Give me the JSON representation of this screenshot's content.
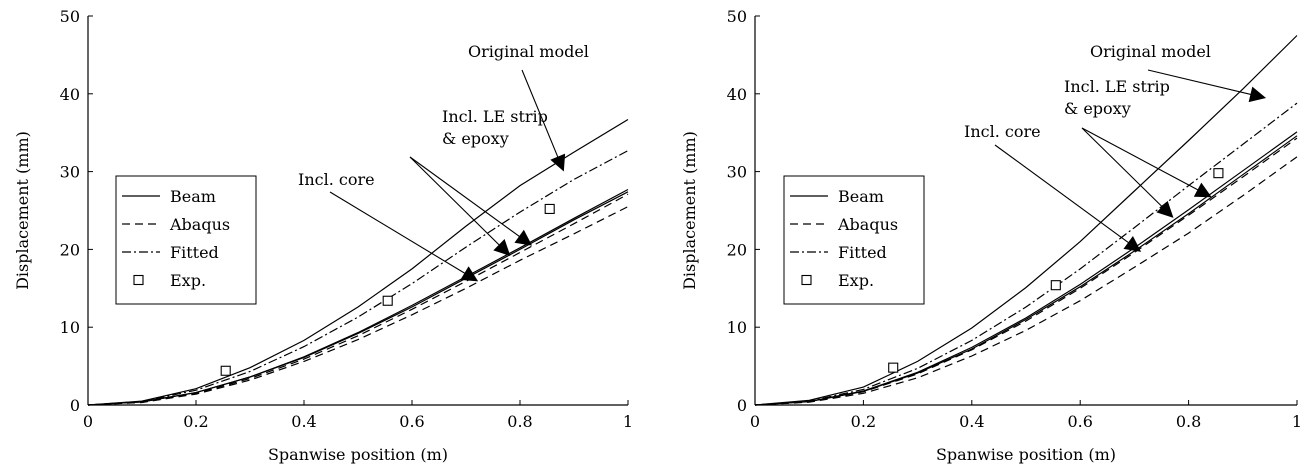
{
  "chart_data": [
    {
      "type": "line",
      "xlabel": "Spanwise position (m)",
      "ylabel": "Displacement (mm)",
      "xlim": [
        0,
        1
      ],
      "ylim": [
        0,
        50
      ],
      "xticks": [
        0,
        0.2,
        0.4,
        0.6,
        0.8,
        1
      ],
      "xtick_labels": [
        "0",
        "0.2",
        "0.4",
        "0.6",
        "0.8",
        "1"
      ],
      "yticks": [
        0,
        10,
        20,
        30,
        40,
        50
      ],
      "ytick_labels": [
        "0",
        "10",
        "20",
        "30",
        "40",
        "50"
      ],
      "grid": false,
      "legend_position": "middle-left",
      "legend": [
        {
          "label": "Beam",
          "style": "solid"
        },
        {
          "label": "Abaqus",
          "style": "dashed"
        },
        {
          "label": "Fitted",
          "style": "dashdot"
        },
        {
          "label": "Exp.",
          "style": "square-marker"
        }
      ],
      "x": [
        0,
        0.1,
        0.2,
        0.3,
        0.4,
        0.5,
        0.6,
        0.7,
        0.8,
        0.9,
        1.0
      ],
      "series": [
        {
          "group": "Original model",
          "kind": "Beam",
          "values": [
            0,
            0.5,
            2.1,
            4.8,
            8.3,
            12.6,
            17.5,
            23.0,
            28.2,
            32.5,
            36.7
          ]
        },
        {
          "group": "Incl. LE strip & epoxy",
          "kind": "Fitted",
          "values": [
            0,
            0.45,
            1.9,
            4.3,
            7.5,
            11.3,
            15.6,
            20.3,
            24.8,
            29.0,
            32.7
          ]
        },
        {
          "group": "Incl. LE strip & epoxy",
          "kind": "Beam",
          "values": [
            0,
            0.4,
            1.6,
            3.6,
            6.2,
            9.3,
            12.8,
            16.5,
            20.2,
            24.0,
            27.7
          ]
        },
        {
          "group": "Incl. LE strip & epoxy",
          "kind": "Abaqus",
          "values": [
            0,
            0.35,
            1.5,
            3.4,
            5.9,
            8.9,
            12.3,
            15.9,
            19.6,
            23.3,
            27.1
          ]
        },
        {
          "group": "Incl. core",
          "kind": "Beam",
          "values": [
            0,
            0.4,
            1.6,
            3.6,
            6.1,
            9.2,
            12.6,
            16.3,
            20.0,
            23.8,
            27.4
          ]
        },
        {
          "group": "Incl. core",
          "kind": "Abaqus",
          "values": [
            0,
            0.32,
            1.4,
            3.2,
            5.6,
            8.4,
            11.6,
            15.0,
            18.6,
            22.0,
            25.5
          ]
        }
      ],
      "experimental": [
        {
          "x": 0.255,
          "y": 4.4
        },
        {
          "x": 0.555,
          "y": 13.4
        },
        {
          "x": 0.855,
          "y": 25.2
        }
      ],
      "annotations": [
        {
          "lines": [
            "Original model"
          ],
          "targets": [
            [
              0.88,
              30.2
            ]
          ]
        },
        {
          "lines": [
            "Incl. LE strip",
            "& epoxy"
          ],
          "targets": [
            [
              0.78,
              19.3
            ],
            [
              0.82,
              20.6
            ]
          ]
        },
        {
          "lines": [
            "Incl. core"
          ],
          "targets": [
            [
              0.72,
              16.0
            ]
          ]
        }
      ]
    },
    {
      "type": "line",
      "xlabel": "Spanwise position (m)",
      "ylabel": "Displacement (mm)",
      "xlim": [
        0,
        1
      ],
      "ylim": [
        0,
        50
      ],
      "xticks": [
        0,
        0.2,
        0.4,
        0.6,
        0.8,
        1
      ],
      "xtick_labels": [
        "0",
        "0.2",
        "0.4",
        "0.6",
        "0.8",
        "1"
      ],
      "yticks": [
        0,
        10,
        20,
        30,
        40,
        50
      ],
      "ytick_labels": [
        "0",
        "10",
        "20",
        "30",
        "40",
        "50"
      ],
      "grid": false,
      "legend_position": "middle-left",
      "legend": [
        {
          "label": "Beam",
          "style": "solid"
        },
        {
          "label": "Abaqus",
          "style": "dashed"
        },
        {
          "label": "Fitted",
          "style": "dashdot"
        },
        {
          "label": "Exp.",
          "style": "square-marker"
        }
      ],
      "x": [
        0,
        0.1,
        0.2,
        0.3,
        0.4,
        0.5,
        0.6,
        0.7,
        0.8,
        0.9,
        1.0
      ],
      "series": [
        {
          "group": "Original model",
          "kind": "Beam",
          "values": [
            0,
            0.6,
            2.3,
            5.6,
            9.9,
            15.1,
            21.0,
            27.5,
            34.0,
            40.6,
            47.5
          ]
        },
        {
          "group": "Incl. LE strip & epoxy",
          "kind": "Fitted",
          "values": [
            0,
            0.5,
            2.0,
            4.7,
            8.3,
            12.6,
            17.5,
            22.8,
            28.2,
            33.5,
            38.8
          ]
        },
        {
          "group": "Incl. LE strip & epoxy",
          "kind": "Beam",
          "values": [
            0,
            0.45,
            1.8,
            4.2,
            7.4,
            11.2,
            15.5,
            20.2,
            25.1,
            30.1,
            35.1
          ]
        },
        {
          "group": "Incl. LE strip & epoxy",
          "kind": "Abaqus",
          "values": [
            0,
            0.42,
            1.7,
            4.0,
            7.1,
            10.8,
            15.0,
            19.6,
            24.4,
            29.3,
            34.3
          ]
        },
        {
          "group": "Incl. core",
          "kind": "Beam",
          "values": [
            0,
            0.44,
            1.75,
            4.1,
            7.2,
            11.0,
            15.2,
            19.8,
            24.6,
            29.6,
            34.6
          ]
        },
        {
          "group": "Incl. core",
          "kind": "Abaqus",
          "values": [
            0,
            0.36,
            1.5,
            3.5,
            6.3,
            9.6,
            13.4,
            17.7,
            22.1,
            26.9,
            31.9
          ]
        }
      ],
      "experimental": [
        {
          "x": 0.255,
          "y": 4.8
        },
        {
          "x": 0.555,
          "y": 15.4
        },
        {
          "x": 0.855,
          "y": 29.8
        }
      ],
      "annotations": [
        {
          "lines": [
            "Original model"
          ],
          "targets": [
            [
              0.94,
              39.5
            ]
          ]
        },
        {
          "lines": [
            "Incl. LE strip",
            "& epoxy"
          ],
          "targets": [
            [
              0.77,
              24.2
            ],
            [
              0.84,
              26.8
            ]
          ]
        },
        {
          "lines": [
            "Incl. core"
          ],
          "targets": [
            [
              0.71,
              19.8
            ]
          ]
        }
      ]
    }
  ]
}
